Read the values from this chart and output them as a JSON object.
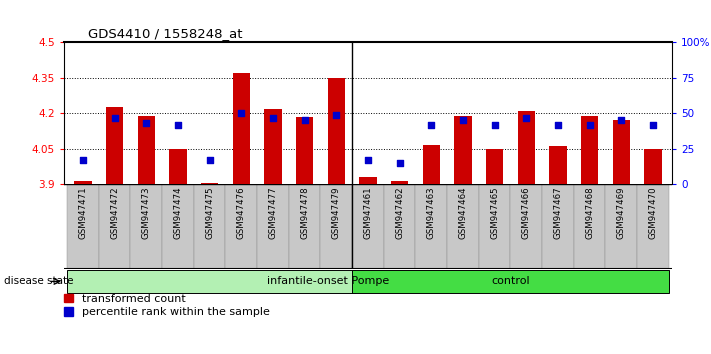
{
  "title": "GDS4410 / 1558248_at",
  "samples": [
    "GSM947471",
    "GSM947472",
    "GSM947473",
    "GSM947474",
    "GSM947475",
    "GSM947476",
    "GSM947477",
    "GSM947478",
    "GSM947479",
    "GSM947461",
    "GSM947462",
    "GSM947463",
    "GSM947464",
    "GSM947465",
    "GSM947466",
    "GSM947467",
    "GSM947468",
    "GSM947469",
    "GSM947470"
  ],
  "transformed_count": [
    3.915,
    4.225,
    4.19,
    4.05,
    3.905,
    4.37,
    4.22,
    4.185,
    4.35,
    3.93,
    3.915,
    4.065,
    4.19,
    4.05,
    4.21,
    4.06,
    4.19,
    4.17,
    4.05
  ],
  "percentile_rank_pct": [
    17,
    47,
    43,
    42,
    17,
    50,
    47,
    45,
    49,
    17,
    15,
    42,
    45,
    42,
    47,
    42,
    42,
    45,
    42
  ],
  "groups": [
    {
      "label": "infantile-onset Pompe",
      "start": 0,
      "end": 9,
      "color": "#b3f0b3"
    },
    {
      "label": "control",
      "start": 9,
      "end": 19,
      "color": "#44dd44"
    }
  ],
  "ylim_left": [
    3.9,
    4.5
  ],
  "yticks_left": [
    3.9,
    4.05,
    4.2,
    4.35,
    4.5
  ],
  "ytick_labels_left": [
    "3.9",
    "4.05",
    "4.2",
    "4.35",
    "4.5"
  ],
  "yticks_right_pct": [
    0,
    25,
    50,
    75,
    100
  ],
  "ytick_labels_right": [
    "0",
    "25",
    "50",
    "75",
    "100%"
  ],
  "bar_color": "#cc0000",
  "dot_color": "#0000cc",
  "label_transformed": "transformed count",
  "label_percentile": "percentile rank within the sample",
  "disease_state_label": "disease state",
  "separator_index": 9,
  "bar_bottom": 3.9,
  "xtick_bg_color": "#c8c8c8",
  "n_pompe": 9,
  "n_control": 10
}
